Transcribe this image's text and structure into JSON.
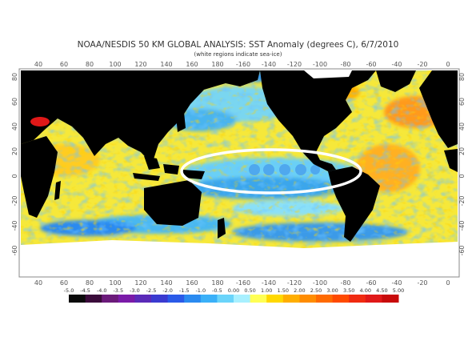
{
  "title": "NOAA/NESDIS 50 KM GLOBAL ANALYSIS: SST Anomaly (degrees C), 6/7/2010",
  "subtitle": "(white regions indicate sea-ice)",
  "lon_ticks_top": [
    "40",
    "60",
    "80",
    "100",
    "120",
    "140",
    "160",
    "180",
    "-160",
    "-140",
    "-120",
    "-100",
    "-80",
    "-60",
    "-40",
    "-20",
    "0"
  ],
  "lon_ticks_bottom": [
    "40",
    "60",
    "80",
    "100",
    "120",
    "140",
    "160",
    "180",
    "-160",
    "-140",
    "-120",
    "-100",
    "-80",
    "-60",
    "-40",
    "-20",
    "0"
  ],
  "lat_ticks": [
    "80",
    "60",
    "40",
    "20",
    "0",
    "-20",
    "-40",
    "-60"
  ],
  "colorbar": {
    "labels": [
      "-5.0",
      "-4.5",
      "-4.0",
      "-3.5",
      "-3.0",
      "-2.5",
      "-2.0",
      "-1.5",
      "-1.0",
      "-0.5",
      "0.00",
      "0.50",
      "1.00",
      "1.50",
      "2.00",
      "2.50",
      "3.00",
      "3.50",
      "4.00",
      "4.50",
      "5.00"
    ],
    "colors": [
      "#0a0a0a",
      "#3a0b3a",
      "#6b1a7a",
      "#7a1aa8",
      "#5a2ab8",
      "#3a3ad0",
      "#2a5ae8",
      "#2a8af0",
      "#3ab0f8",
      "#6ad4fa",
      "#a8f0ff",
      "#ffff55",
      "#ffd800",
      "#ffae00",
      "#ff8c00",
      "#ff6a00",
      "#ff4a00",
      "#f02a10",
      "#e01818",
      "#c80a0a"
    ]
  },
  "colors": {
    "land": "#000000",
    "ice": "#ffffff",
    "highlight": "#ffffff",
    "frame": "#777777"
  }
}
